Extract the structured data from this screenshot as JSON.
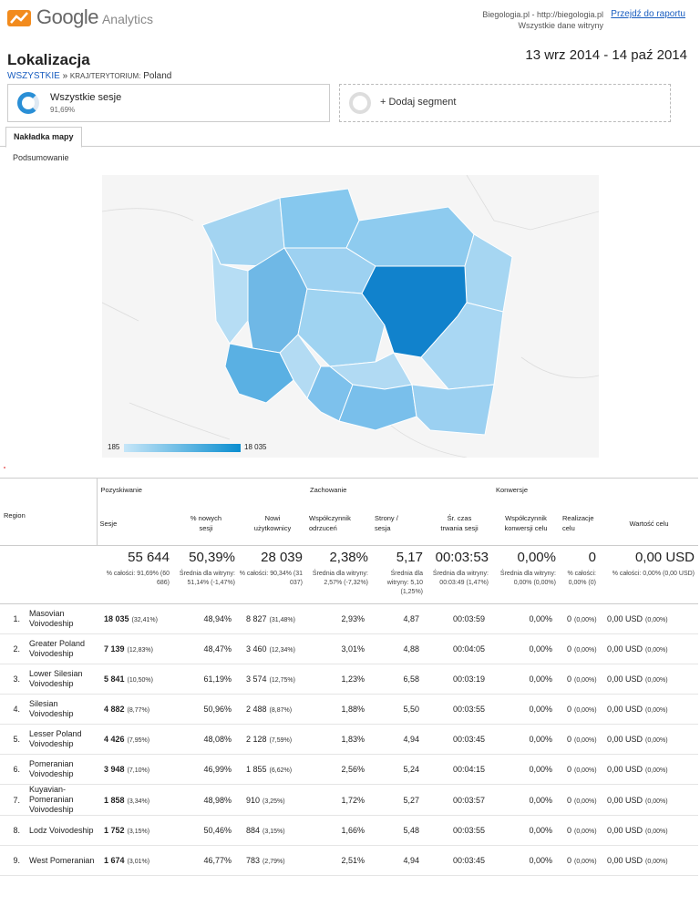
{
  "header": {
    "logo_google": "Google",
    "logo_analytics": "Analytics",
    "site_line1": "Biegologia.pl - http://biegologia.pl",
    "site_line2": "Wszystkie dane witryny",
    "report_link": "Przejdź do raportu"
  },
  "page": {
    "title": "Lokalizacja",
    "date_range": "13 wrz 2014 - 14 paź 2014"
  },
  "breadcrumb": {
    "root": "WSZYSTKIE",
    "sep": "»",
    "key": "KRAJ/TERYTORIUM:",
    "value": "Poland"
  },
  "segment": {
    "name": "Wszystkie sesje",
    "pct": "91,69%",
    "add_label": "+ Dodaj segment"
  },
  "tabs": {
    "map_overlay": "Nakładka mapy",
    "summary": "Podsumowanie"
  },
  "map_legend": {
    "min": "185",
    "max": "18 035"
  },
  "colors": {
    "accent": "#1a5ec0",
    "map_high": "#0a8ed0",
    "map_low": "#c6e6f8"
  },
  "table": {
    "groups": {
      "acquisition": "Pozyskiwanie",
      "behavior": "Zachowanie",
      "conversions": "Konwersje"
    },
    "region_header": "Region",
    "columns": {
      "sessions": "Sesje",
      "new_sessions_1": "% nowych",
      "new_sessions_2": "sesji",
      "new_users_1": "Nowi",
      "new_users_2": "użytkownicy",
      "bounce_1": "Współczynnik",
      "bounce_2": "odrzuceń",
      "pages_1": "Strony /",
      "pages_2": "sesja",
      "duration_1": "Śr. czas",
      "duration_2": "trwania sesji",
      "conv_rate_1": "Współczynnik",
      "conv_rate_2": "konwersji celu",
      "completions_1": "Realizacje",
      "completions_2": "celu",
      "value": "Wartość celu"
    },
    "totals": {
      "sessions": "55 644",
      "sessions_sub": "% całości: 91,69% (60 686)",
      "new_sessions": "50,39%",
      "new_sessions_sub": "Średnia dla witryny: 51,14% (-1,47%)",
      "new_users": "28 039",
      "new_users_sub": "% całości: 90,34% (31 037)",
      "bounce": "2,38%",
      "bounce_sub": "Średnia dla witryny: 2,57% (-7,32%)",
      "pages": "5,17",
      "pages_sub": "Średnia dla witryny: 5,10 (1,25%)",
      "duration": "00:03:53",
      "duration_sub": "Średnia dla witryny: 00:03:49 (1,47%)",
      "conv_rate": "0,00%",
      "conv_rate_sub": "Średnia dla witryny: 0,00% (0,00%)",
      "completions": "0",
      "completions_sub": "% całości: 0,00% (0)",
      "value": "0,00 USD",
      "value_sub": "% całości: 0,00% (0,00 USD)"
    },
    "rows": [
      {
        "idx": "1.",
        "name": "Masovian Voivodeship",
        "sessions": "18 035",
        "sessions_pct": "(32,41%)",
        "new_sessions": "48,94%",
        "new_users": "8 827",
        "new_users_pct": "(31,48%)",
        "bounce": "2,93%",
        "pages": "4,87",
        "duration": "00:03:59",
        "conv_rate": "0,00%",
        "completions": "0",
        "completions_pct": "(0,00%)",
        "value": "0,00 USD",
        "value_pct": "(0,00%)"
      },
      {
        "idx": "2.",
        "name": "Greater Poland Voivodeship",
        "sessions": "7 139",
        "sessions_pct": "(12,83%)",
        "new_sessions": "48,47%",
        "new_users": "3 460",
        "new_users_pct": "(12,34%)",
        "bounce": "3,01%",
        "pages": "4,88",
        "duration": "00:04:05",
        "conv_rate": "0,00%",
        "completions": "0",
        "completions_pct": "(0,00%)",
        "value": "0,00 USD",
        "value_pct": "(0,00%)"
      },
      {
        "idx": "3.",
        "name": "Lower Silesian Voivodeship",
        "sessions": "5 841",
        "sessions_pct": "(10,50%)",
        "new_sessions": "61,19%",
        "new_users": "3 574",
        "new_users_pct": "(12,75%)",
        "bounce": "1,23%",
        "pages": "6,58",
        "duration": "00:03:19",
        "conv_rate": "0,00%",
        "completions": "0",
        "completions_pct": "(0,00%)",
        "value": "0,00 USD",
        "value_pct": "(0,00%)"
      },
      {
        "idx": "4.",
        "name": "Silesian Voivodeship",
        "sessions": "4 882",
        "sessions_pct": "(8,77%)",
        "new_sessions": "50,96%",
        "new_users": "2 488",
        "new_users_pct": "(8,87%)",
        "bounce": "1,88%",
        "pages": "5,50",
        "duration": "00:03:55",
        "conv_rate": "0,00%",
        "completions": "0",
        "completions_pct": "(0,00%)",
        "value": "0,00 USD",
        "value_pct": "(0,00%)"
      },
      {
        "idx": "5.",
        "name": "Lesser Poland Voivodeship",
        "sessions": "4 426",
        "sessions_pct": "(7,95%)",
        "new_sessions": "48,08%",
        "new_users": "2 128",
        "new_users_pct": "(7,59%)",
        "bounce": "1,83%",
        "pages": "4,94",
        "duration": "00:03:45",
        "conv_rate": "0,00%",
        "completions": "0",
        "completions_pct": "(0,00%)",
        "value": "0,00 USD",
        "value_pct": "(0,00%)"
      },
      {
        "idx": "6.",
        "name": "Pomeranian Voivodeship",
        "sessions": "3 948",
        "sessions_pct": "(7,10%)",
        "new_sessions": "46,99%",
        "new_users": "1 855",
        "new_users_pct": "(6,62%)",
        "bounce": "2,56%",
        "pages": "5,24",
        "duration": "00:04:15",
        "conv_rate": "0,00%",
        "completions": "0",
        "completions_pct": "(0,00%)",
        "value": "0,00 USD",
        "value_pct": "(0,00%)"
      },
      {
        "idx": "7.",
        "name": "Kuyavian-Pomeranian Voivodeship",
        "sessions": "1 858",
        "sessions_pct": "(3,34%)",
        "new_sessions": "48,98%",
        "new_users": "910",
        "new_users_pct": "(3,25%)",
        "bounce": "1,72%",
        "pages": "5,27",
        "duration": "00:03:57",
        "conv_rate": "0,00%",
        "completions": "0",
        "completions_pct": "(0,00%)",
        "value": "0,00 USD",
        "value_pct": "(0,00%)"
      },
      {
        "idx": "8.",
        "name": "Lodz Voivodeship",
        "sessions": "1 752",
        "sessions_pct": "(3,15%)",
        "new_sessions": "50,46%",
        "new_users": "884",
        "new_users_pct": "(3,15%)",
        "bounce": "1,66%",
        "pages": "5,48",
        "duration": "00:03:55",
        "conv_rate": "0,00%",
        "completions": "0",
        "completions_pct": "(0,00%)",
        "value": "0,00 USD",
        "value_pct": "(0,00%)"
      },
      {
        "idx": "9.",
        "name": "West Pomeranian",
        "sessions": "1 674",
        "sessions_pct": "(3,01%)",
        "new_sessions": "46,77%",
        "new_users": "783",
        "new_users_pct": "(2,79%)",
        "bounce": "2,51%",
        "pages": "4,94",
        "duration": "00:03:45",
        "conv_rate": "0,00%",
        "completions": "0",
        "completions_pct": "(0,00%)",
        "value": "0,00 USD",
        "value_pct": "(0,00%)"
      }
    ]
  }
}
